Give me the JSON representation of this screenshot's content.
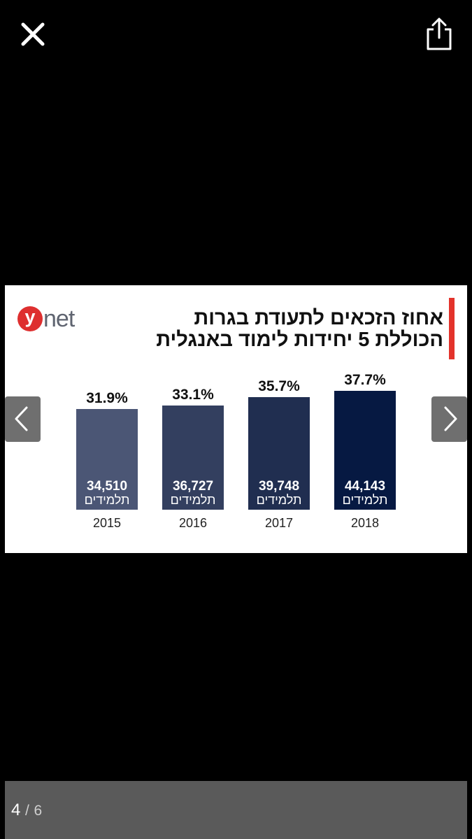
{
  "viewer": {
    "close_icon": "close-icon",
    "share_icon": "share-icon",
    "prev_icon": "chevron-left-icon",
    "next_icon": "chevron-right-icon",
    "page_current": "4",
    "page_separator": "/",
    "page_total": "6"
  },
  "infographic": {
    "logo_letter": "y",
    "logo_word": "net",
    "title_line1": "אחוז הזכאים לתעודת בגרות",
    "title_line2": "הכוללת 5 יחידות לימוד באנגלית",
    "accent_color": "#e3332b",
    "logo_color": "#de2f2f"
  },
  "chart_data": {
    "type": "bar",
    "title": "אחוז הזכאים לתעודת בגרות הכוללת 5 יחידות לימוד באנגלית",
    "categories": [
      "2015",
      "2016",
      "2017",
      "2018"
    ],
    "values": [
      31.9,
      33.1,
      35.7,
      37.7
    ],
    "value_labels": [
      "31.9%",
      "33.1%",
      "35.7%",
      "37.7%"
    ],
    "student_counts": [
      "34,510",
      "36,727",
      "39,748",
      "44,143"
    ],
    "count_unit": "תלמידים",
    "bar_colors": [
      "#4b5675",
      "#333f5f",
      "#202e50",
      "#061942"
    ],
    "xlabel": "",
    "ylabel": "",
    "ylim": [
      0,
      40
    ],
    "grid": false
  }
}
